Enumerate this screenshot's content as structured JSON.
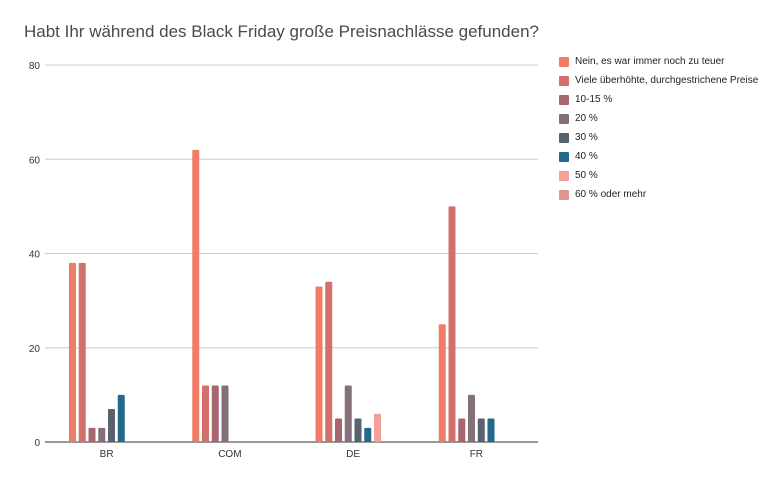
{
  "chart_data": {
    "type": "bar",
    "title": "Habt Ihr während des Black Friday große Preisnachlässe gefunden?",
    "xlabel": "",
    "ylabel": "",
    "ylim": [
      0,
      80
    ],
    "yticks": [
      0,
      20,
      40,
      60,
      80
    ],
    "grid": true,
    "legend_position": "right",
    "categories": [
      "BR",
      "COM",
      "DE",
      "FR"
    ],
    "series": [
      {
        "name": "Nein, es war immer noch zu teuer",
        "color": "#f07b67",
        "values": [
          38,
          62,
          33,
          25
        ]
      },
      {
        "name": "Viele überhöhte, durchgestrichene Preise",
        "color": "#d4706c",
        "values": [
          38,
          12,
          34,
          50
        ]
      },
      {
        "name": "10-15 %",
        "color": "#a8676e",
        "values": [
          3,
          12,
          5,
          5
        ]
      },
      {
        "name": "20 %",
        "color": "#84707a",
        "values": [
          3,
          12,
          12,
          10
        ]
      },
      {
        "name": "30 %",
        "color": "#5a6270",
        "values": [
          7,
          0,
          5,
          5
        ]
      },
      {
        "name": "40 %",
        "color": "#236a8a",
        "values": [
          10,
          0,
          3,
          5
        ]
      },
      {
        "name": "50 %",
        "color": "#f4a199",
        "values": [
          0,
          0,
          6,
          0
        ]
      },
      {
        "name": "60 % oder mehr",
        "color": "#e0968d",
        "values": [
          0,
          0,
          0,
          0
        ]
      }
    ]
  }
}
